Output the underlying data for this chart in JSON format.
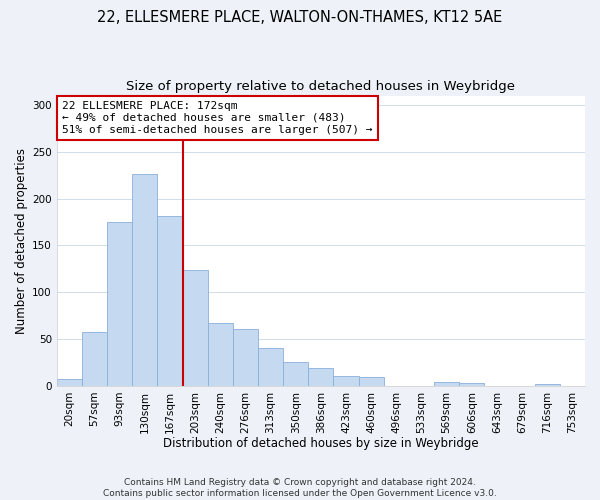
{
  "title": "22, ELLESMERE PLACE, WALTON-ON-THAMES, KT12 5AE",
  "subtitle": "Size of property relative to detached houses in Weybridge",
  "xlabel": "Distribution of detached houses by size in Weybridge",
  "ylabel": "Number of detached properties",
  "bar_labels": [
    "20sqm",
    "57sqm",
    "93sqm",
    "130sqm",
    "167sqm",
    "203sqm",
    "240sqm",
    "276sqm",
    "313sqm",
    "350sqm",
    "386sqm",
    "423sqm",
    "460sqm",
    "496sqm",
    "533sqm",
    "569sqm",
    "606sqm",
    "643sqm",
    "679sqm",
    "716sqm",
    "753sqm"
  ],
  "bar_values": [
    7,
    57,
    175,
    226,
    181,
    124,
    67,
    61,
    40,
    25,
    19,
    10,
    9,
    0,
    0,
    4,
    3,
    0,
    0,
    2,
    0
  ],
  "bar_color": "#c5d9f0",
  "bar_edge_color": "#8ab0d8",
  "vline_x_index": 4,
  "vline_color": "#cc0000",
  "annotation_line1": "22 ELLESMERE PLACE: 172sqm",
  "annotation_line2": "← 49% of detached houses are smaller (483)",
  "annotation_line3": "51% of semi-detached houses are larger (507) →",
  "annotation_box_color": "#ffffff",
  "annotation_box_edge": "#cc0000",
  "ylim": [
    0,
    310
  ],
  "yticks": [
    0,
    50,
    100,
    150,
    200,
    250,
    300
  ],
  "footer_line1": "Contains HM Land Registry data © Crown copyright and database right 2024.",
  "footer_line2": "Contains public sector information licensed under the Open Government Licence v3.0.",
  "fig_background_color": "#eef2f8",
  "plot_background_color": "#ffffff",
  "title_fontsize": 10.5,
  "subtitle_fontsize": 9.5,
  "axis_label_fontsize": 8.5,
  "tick_fontsize": 7.5,
  "annotation_fontsize": 8,
  "footer_fontsize": 6.5
}
